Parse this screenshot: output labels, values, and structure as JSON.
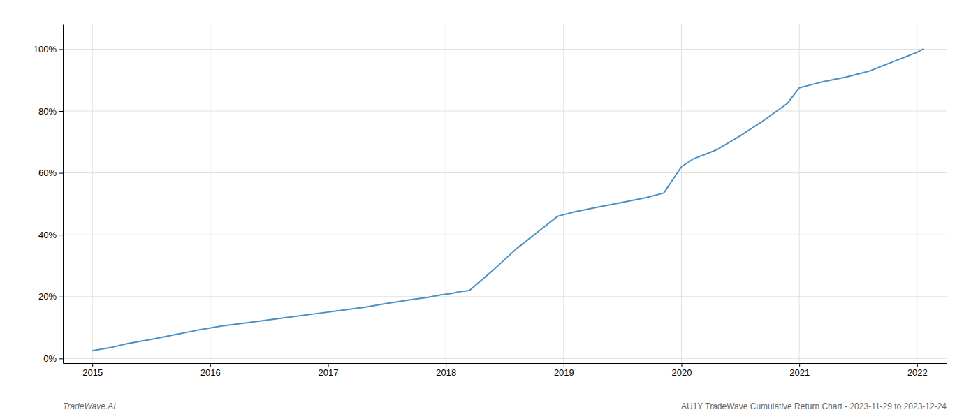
{
  "chart_data": {
    "type": "line",
    "title": "AU1Y TradeWave Cumulative Return Chart - 2023-11-29 to 2023-12-24",
    "annotations": [
      "TradeWave.AI"
    ],
    "color": "#4a90c4",
    "x": [
      2015.0,
      2015.15,
      2015.3,
      2015.5,
      2015.7,
      2015.9,
      2016.1,
      2016.3,
      2016.5,
      2016.7,
      2016.9,
      2017.1,
      2017.3,
      2017.5,
      2017.7,
      2017.85,
      2017.95,
      2018.05,
      2018.1,
      2018.2,
      2018.4,
      2018.6,
      2018.8,
      2018.95,
      2019.1,
      2019.3,
      2019.5,
      2019.7,
      2019.85,
      2020.0,
      2020.1,
      2020.3,
      2020.5,
      2020.7,
      2020.9,
      2021.0,
      2021.1,
      2021.2,
      2021.4,
      2021.6,
      2021.8,
      2021.9,
      2022.0,
      2022.05
    ],
    "values": [
      0.025,
      0.035,
      0.048,
      0.062,
      0.077,
      0.092,
      0.105,
      0.115,
      0.125,
      0.135,
      0.145,
      0.155,
      0.165,
      0.178,
      0.19,
      0.198,
      0.205,
      0.21,
      0.215,
      0.22,
      0.285,
      0.355,
      0.415,
      0.46,
      0.475,
      0.49,
      0.505,
      0.52,
      0.535,
      0.62,
      0.645,
      0.675,
      0.72,
      0.77,
      0.825,
      0.875,
      0.885,
      0.895,
      0.91,
      0.93,
      0.96,
      0.975,
      0.99,
      1.0
    ],
    "xlim": [
      2014.75,
      2022.25
    ],
    "ylim": [
      -0.015,
      1.08
    ],
    "xticks": [
      2015,
      2016,
      2017,
      2018,
      2019,
      2020,
      2021,
      2022
    ],
    "yticks": [
      {
        "value": 0.0,
        "label": "0%"
      },
      {
        "value": 0.2,
        "label": "20%"
      },
      {
        "value": 0.4,
        "label": "40%"
      },
      {
        "value": 0.6,
        "label": "60%"
      },
      {
        "value": 0.8,
        "label": "80%"
      },
      {
        "value": 1.0,
        "label": "100%"
      }
    ],
    "grid": true
  }
}
